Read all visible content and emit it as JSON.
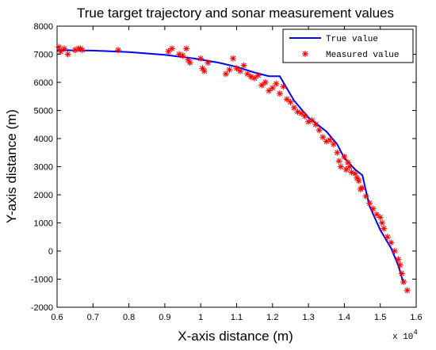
{
  "chart_data": {
    "type": "line",
    "title": "True target trajectory and sonar measurement values",
    "xlabel": "X-axis distance (m)",
    "ylabel": "Y-axis distance (m)",
    "x_exponent_label": "x 10",
    "x_exponent_power": "4",
    "xlim": [
      6000,
      16000
    ],
    "ylim": [
      -2000,
      8000
    ],
    "x_ticks": [
      6000,
      7000,
      8000,
      9000,
      10000,
      11000,
      12000,
      13000,
      14000,
      15000,
      16000
    ],
    "x_tick_labels": [
      "0.6",
      "0.7",
      "0.8",
      "0.9",
      "1",
      "1.1",
      "1.2",
      "1.3",
      "1.4",
      "1.5",
      "1.6"
    ],
    "y_ticks": [
      -2000,
      -1000,
      0,
      1000,
      2000,
      3000,
      4000,
      5000,
      6000,
      7000,
      8000
    ],
    "y_tick_labels": [
      "-2000",
      "-1000",
      "0",
      "1000",
      "2000",
      "3000",
      "4000",
      "5000",
      "6000",
      "7000",
      "8000"
    ],
    "grid": false,
    "legend_position": "top-right",
    "series": [
      {
        "name": "True value",
        "style": "line",
        "color": "#0000ff",
        "x": [
          6000,
          7000,
          8000,
          9000,
          9800,
          10500,
          11000,
          11500,
          11900,
          12200,
          12600,
          13000,
          13500,
          13800,
          14000,
          14300,
          14500,
          14700,
          15000,
          15300,
          15500,
          15650
        ],
        "y": [
          7150,
          7130,
          7080,
          6980,
          6850,
          6700,
          6550,
          6350,
          6220,
          6220,
          5350,
          4750,
          4250,
          3800,
          3300,
          2900,
          2700,
          1600,
          750,
          100,
          -500,
          -1150
        ]
      },
      {
        "name": "Measured value",
        "style": "scatter",
        "marker": "*",
        "color": "#ff0000",
        "x": [
          6050,
          6100,
          6200,
          6300,
          6500,
          6600,
          6650,
          6700,
          7700,
          9100,
          9200,
          9400,
          9500,
          9600,
          9650,
          9700,
          10000,
          10050,
          10100,
          10200,
          10700,
          10800,
          10900,
          11000,
          11100,
          11200,
          11300,
          11400,
          11500,
          11600,
          11700,
          11800,
          11900,
          12000,
          12100,
          12200,
          12300,
          12400,
          12500,
          12600,
          12700,
          12800,
          12900,
          13000,
          13100,
          13200,
          13300,
          13400,
          13500,
          13600,
          13700,
          13800,
          13850,
          13900,
          14000,
          14050,
          14100,
          14150,
          14200,
          14300,
          14350,
          14400,
          14450,
          14500,
          14600,
          14700,
          14800,
          14900,
          15000,
          15050,
          15100,
          15200,
          15300,
          15400,
          15500,
          15550,
          15600,
          15650,
          15750
        ],
        "y": [
          7250,
          7100,
          7200,
          7000,
          7150,
          7200,
          7200,
          7150,
          7150,
          7100,
          7200,
          7000,
          6950,
          7200,
          6800,
          6700,
          6850,
          6500,
          6400,
          6700,
          6300,
          6450,
          6850,
          6500,
          6400,
          6600,
          6300,
          6200,
          6150,
          6250,
          5900,
          6000,
          5700,
          5800,
          5950,
          5600,
          5850,
          5400,
          5300,
          5100,
          4950,
          4900,
          4800,
          4600,
          4650,
          4500,
          4300,
          4050,
          3900,
          3950,
          3800,
          3500,
          3200,
          3000,
          3350,
          2900,
          3150,
          3000,
          2800,
          2750,
          2600,
          2500,
          2200,
          2250,
          1950,
          1700,
          1500,
          1300,
          1200,
          1000,
          800,
          500,
          300,
          0,
          -300,
          -500,
          -800,
          -1100,
          -1400
        ]
      }
    ]
  }
}
